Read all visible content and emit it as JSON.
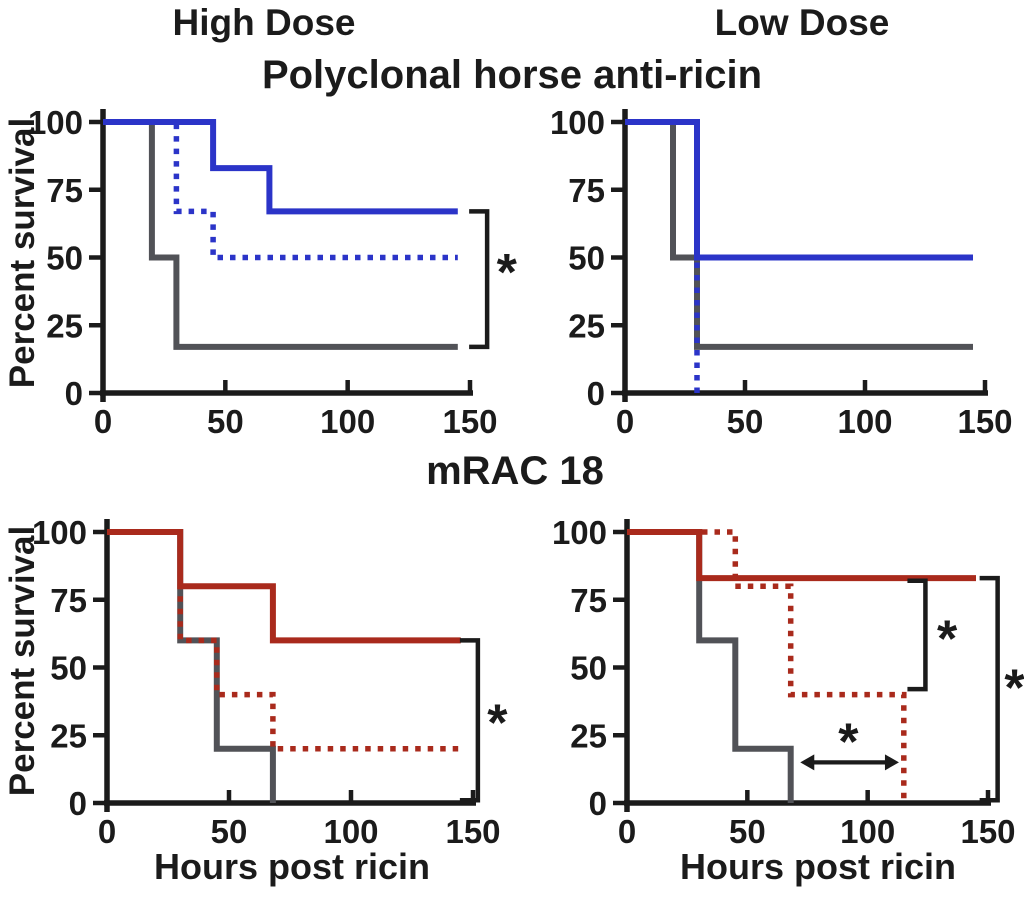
{
  "figure": {
    "column_titles": [
      "High Dose",
      "Low Dose"
    ],
    "row_titles": [
      "Polyclonal horse anti-ricin",
      "mRAC 18"
    ],
    "y_axis_label": "Percent survival",
    "x_axis_label": "Hours post ricin",
    "significance_marker": "*",
    "colors": {
      "polyclonal_blue": "#2B34C8",
      "mrac18_red": "#A92A1C",
      "control_gray": "#515257",
      "axis_black": "#1b1b1b"
    }
  },
  "chart_data": [
    {
      "id": "polyclonal-high",
      "type": "line",
      "subtype": "kaplan_meier_step",
      "column_title": "High Dose",
      "row_title": "Polyclonal horse anti-ricin",
      "xlabel": "Hours post ricin",
      "ylabel": "Percent survival",
      "xlim": [
        0,
        150
      ],
      "ylim": [
        0,
        100
      ],
      "xticks": [
        0,
        50,
        100,
        150
      ],
      "yticks": [
        0,
        25,
        50,
        75,
        100
      ],
      "grid": false,
      "series": [
        {
          "name": "gray-solid-control",
          "color": "#515257",
          "style": "solid",
          "points": [
            [
              0,
              100
            ],
            [
              20,
              100
            ],
            [
              20,
              50
            ],
            [
              30,
              50
            ],
            [
              30,
              17
            ],
            [
              145,
              17
            ]
          ]
        },
        {
          "name": "blue-dotted",
          "color": "#2B34C8",
          "style": "dotted",
          "points": [
            [
              0,
              100
            ],
            [
              30,
              100
            ],
            [
              30,
              67
            ],
            [
              45,
              67
            ],
            [
              45,
              50
            ],
            [
              145,
              50
            ]
          ]
        },
        {
          "name": "blue-solid",
          "color": "#2B34C8",
          "style": "solid",
          "points": [
            [
              0,
              100
            ],
            [
              45,
              100
            ],
            [
              45,
              83
            ],
            [
              68,
              83
            ],
            [
              68,
              67
            ],
            [
              145,
              67
            ]
          ]
        }
      ],
      "annotations": [
        {
          "type": "bracket",
          "x_hours": 157,
          "y_top_pct": 67,
          "y_bottom_pct": 17,
          "label": "*",
          "label_x_hours": 165,
          "label_y_pct": 45
        }
      ]
    },
    {
      "id": "polyclonal-low",
      "type": "line",
      "subtype": "kaplan_meier_step",
      "column_title": "Low Dose",
      "row_title": "Polyclonal horse anti-ricin",
      "xlabel": "Hours post ricin",
      "ylabel": "Percent survival",
      "xlim": [
        0,
        150
      ],
      "ylim": [
        0,
        100
      ],
      "xticks": [
        0,
        50,
        100,
        150
      ],
      "yticks": [
        0,
        25,
        50,
        75,
        100
      ],
      "grid": false,
      "series": [
        {
          "name": "gray-solid-control",
          "color": "#515257",
          "style": "solid",
          "points": [
            [
              0,
              100
            ],
            [
              20,
              100
            ],
            [
              20,
              50
            ],
            [
              30,
              50
            ],
            [
              30,
              17
            ],
            [
              145,
              17
            ]
          ]
        },
        {
          "name": "blue-dotted",
          "color": "#2B34C8",
          "style": "dotted",
          "points": [
            [
              0,
              100
            ],
            [
              30,
              100
            ],
            [
              30,
              0
            ]
          ]
        },
        {
          "name": "blue-solid",
          "color": "#2B34C8",
          "style": "solid",
          "points": [
            [
              0,
              100
            ],
            [
              30,
              100
            ],
            [
              30,
              50
            ],
            [
              145,
              50
            ]
          ]
        }
      ],
      "annotations": []
    },
    {
      "id": "mrac18-high",
      "type": "line",
      "subtype": "kaplan_meier_step",
      "column_title": "High Dose",
      "row_title": "mRAC 18",
      "xlabel": "Hours post ricin",
      "ylabel": "Percent survival",
      "xlim": [
        0,
        150
      ],
      "ylim": [
        0,
        100
      ],
      "xticks": [
        0,
        50,
        100,
        150
      ],
      "yticks": [
        0,
        25,
        50,
        75,
        100
      ],
      "grid": false,
      "series": [
        {
          "name": "gray-solid-control",
          "color": "#515257",
          "style": "solid",
          "points": [
            [
              0,
              100
            ],
            [
              30,
              100
            ],
            [
              30,
              60
            ],
            [
              45,
              60
            ],
            [
              45,
              20
            ],
            [
              68,
              20
            ],
            [
              68,
              0
            ]
          ]
        },
        {
          "name": "red-dotted",
          "color": "#A92A1C",
          "style": "dotted",
          "points": [
            [
              0,
              100
            ],
            [
              30,
              100
            ],
            [
              30,
              60
            ],
            [
              45,
              60
            ],
            [
              45,
              40
            ],
            [
              68,
              40
            ],
            [
              68,
              20
            ],
            [
              145,
              20
            ]
          ]
        },
        {
          "name": "red-solid",
          "color": "#A92A1C",
          "style": "solid",
          "points": [
            [
              0,
              100
            ],
            [
              30,
              100
            ],
            [
              30,
              80
            ],
            [
              68,
              80
            ],
            [
              68,
              60
            ],
            [
              145,
              60
            ]
          ]
        }
      ],
      "annotations": [
        {
          "type": "bracket",
          "x_hours": 152,
          "y_top_pct": 60,
          "y_bottom_pct": 1,
          "label": "*",
          "label_x_hours": 160,
          "label_y_pct": 30
        }
      ]
    },
    {
      "id": "mrac18-low",
      "type": "line",
      "subtype": "kaplan_meier_step",
      "column_title": "Low Dose",
      "row_title": "mRAC 18",
      "xlabel": "Hours post ricin",
      "ylabel": "Percent survival",
      "xlim": [
        0,
        150
      ],
      "ylim": [
        0,
        100
      ],
      "xticks": [
        0,
        50,
        100,
        150
      ],
      "yticks": [
        0,
        25,
        50,
        75,
        100
      ],
      "grid": false,
      "series": [
        {
          "name": "gray-solid-control",
          "color": "#515257",
          "style": "solid",
          "points": [
            [
              0,
              100
            ],
            [
              30,
              100
            ],
            [
              30,
              60
            ],
            [
              45,
              60
            ],
            [
              45,
              20
            ],
            [
              68,
              20
            ],
            [
              68,
              0
            ]
          ]
        },
        {
          "name": "red-dotted",
          "color": "#A92A1C",
          "style": "dotted",
          "points": [
            [
              0,
              100
            ],
            [
              45,
              100
            ],
            [
              45,
              80
            ],
            [
              68,
              80
            ],
            [
              68,
              40
            ],
            [
              115,
              40
            ],
            [
              115,
              0
            ]
          ]
        },
        {
          "name": "red-solid",
          "color": "#A92A1C",
          "style": "solid",
          "points": [
            [
              0,
              100
            ],
            [
              30,
              100
            ],
            [
              30,
              83
            ],
            [
              145,
              83
            ]
          ]
        }
      ],
      "annotations": [
        {
          "type": "bracket",
          "x_hours": 124,
          "y_top_pct": 82,
          "y_bottom_pct": 42,
          "label": "*",
          "label_x_hours": 133,
          "label_y_pct": 61
        },
        {
          "type": "bracket",
          "x_hours": 154,
          "y_top_pct": 83,
          "y_bottom_pct": 1,
          "label": "*",
          "label_x_hours": 161,
          "label_y_pct": 43
        },
        {
          "type": "double_arrow",
          "y_pct": 15,
          "x_from_hours": 72,
          "x_to_hours": 113,
          "label": "*",
          "label_x_hours": 92,
          "label_y_pct": 23
        }
      ]
    }
  ]
}
